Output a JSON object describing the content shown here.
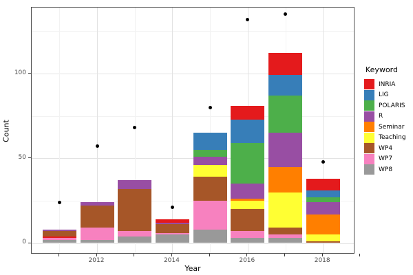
{
  "chart_data": {
    "type": "bar",
    "stacked": true,
    "xlabel": "Year",
    "ylabel": "Count",
    "legend_title": "Keyword",
    "legend_position": "right",
    "ylim": [
      0,
      139
    ],
    "y_ticks": [
      0,
      50,
      100
    ],
    "y_minor_gridlines": [
      25,
      75,
      125
    ],
    "x_tick_years": [
      2011,
      2012,
      2013,
      2014,
      2015,
      2016,
      2017,
      2018,
      2019
    ],
    "x_label_years": [
      2012,
      2014,
      2016,
      2018
    ],
    "grid": true,
    "keywords": [
      {
        "label": "INRIA",
        "color": "#E41A1C"
      },
      {
        "label": "LIG",
        "color": "#377EB8"
      },
      {
        "label": "POLARIS",
        "color": "#4DAF4A"
      },
      {
        "label": "R",
        "color": "#984EA3"
      },
      {
        "label": "Seminar",
        "color": "#FF7F00"
      },
      {
        "label": "Teaching",
        "color": "#FFFF33"
      },
      {
        "label": "WP4",
        "color": "#A65628"
      },
      {
        "label": "WP7",
        "color": "#F781BF"
      },
      {
        "label": "WP8",
        "color": "#999999"
      }
    ],
    "bars": [
      {
        "year": 2011,
        "total": 8,
        "segments": [
          [
            "WP8",
            2
          ],
          [
            "WP7",
            1
          ],
          [
            "INRIA",
            1
          ],
          [
            "WP4",
            3
          ],
          [
            "R",
            1
          ]
        ]
      },
      {
        "year": 2012,
        "total": 24,
        "segments": [
          [
            "WP8",
            2
          ],
          [
            "WP7",
            7
          ],
          [
            "WP4",
            13
          ],
          [
            "R",
            2
          ]
        ]
      },
      {
        "year": 2013,
        "total": 37,
        "segments": [
          [
            "WP8",
            4
          ],
          [
            "WP7",
            3
          ],
          [
            "WP4",
            25
          ],
          [
            "R",
            5
          ]
        ]
      },
      {
        "year": 2014,
        "total": 14,
        "segments": [
          [
            "WP8",
            5
          ],
          [
            "WP7",
            1
          ],
          [
            "WP4",
            5
          ],
          [
            "R",
            1
          ],
          [
            "INRIA",
            2
          ]
        ]
      },
      {
        "year": 2015,
        "total": 65,
        "segments": [
          [
            "WP8",
            8
          ],
          [
            "WP7",
            17
          ],
          [
            "WP4",
            14
          ],
          [
            "Teaching",
            7
          ],
          [
            "R",
            5
          ],
          [
            "POLARIS",
            4
          ],
          [
            "LIG",
            10
          ]
        ]
      },
      {
        "year": 2016,
        "total": 81,
        "segments": [
          [
            "WP8",
            3
          ],
          [
            "WP7",
            4
          ],
          [
            "WP4",
            13
          ],
          [
            "Teaching",
            5
          ],
          [
            "Seminar",
            1
          ],
          [
            "R",
            9
          ],
          [
            "POLARIS",
            24
          ],
          [
            "LIG",
            14
          ],
          [
            "INRIA",
            8
          ]
        ]
      },
      {
        "year": 2017,
        "total": 112,
        "segments": [
          [
            "WP8",
            3
          ],
          [
            "WP7",
            2
          ],
          [
            "WP4",
            4
          ],
          [
            "Teaching",
            21
          ],
          [
            "Seminar",
            15
          ],
          [
            "R",
            20
          ],
          [
            "POLARIS",
            22
          ],
          [
            "LIG",
            12
          ],
          [
            "INRIA",
            13
          ]
        ]
      },
      {
        "year": 2018,
        "total": 38,
        "segments": [
          [
            "WP4",
            1
          ],
          [
            "Teaching",
            4
          ],
          [
            "Seminar",
            12
          ],
          [
            "R",
            7
          ],
          [
            "POLARIS",
            3
          ],
          [
            "LIG",
            4
          ],
          [
            "INRIA",
            7
          ]
        ]
      }
    ],
    "points": [
      {
        "year": 2011,
        "value": 24
      },
      {
        "year": 2012,
        "value": 57
      },
      {
        "year": 2013,
        "value": 68
      },
      {
        "year": 2014,
        "value": 21
      },
      {
        "year": 2015,
        "value": 80
      },
      {
        "year": 2016,
        "value": 132
      },
      {
        "year": 2017,
        "value": 135
      },
      {
        "year": 2018,
        "value": 48
      }
    ]
  }
}
